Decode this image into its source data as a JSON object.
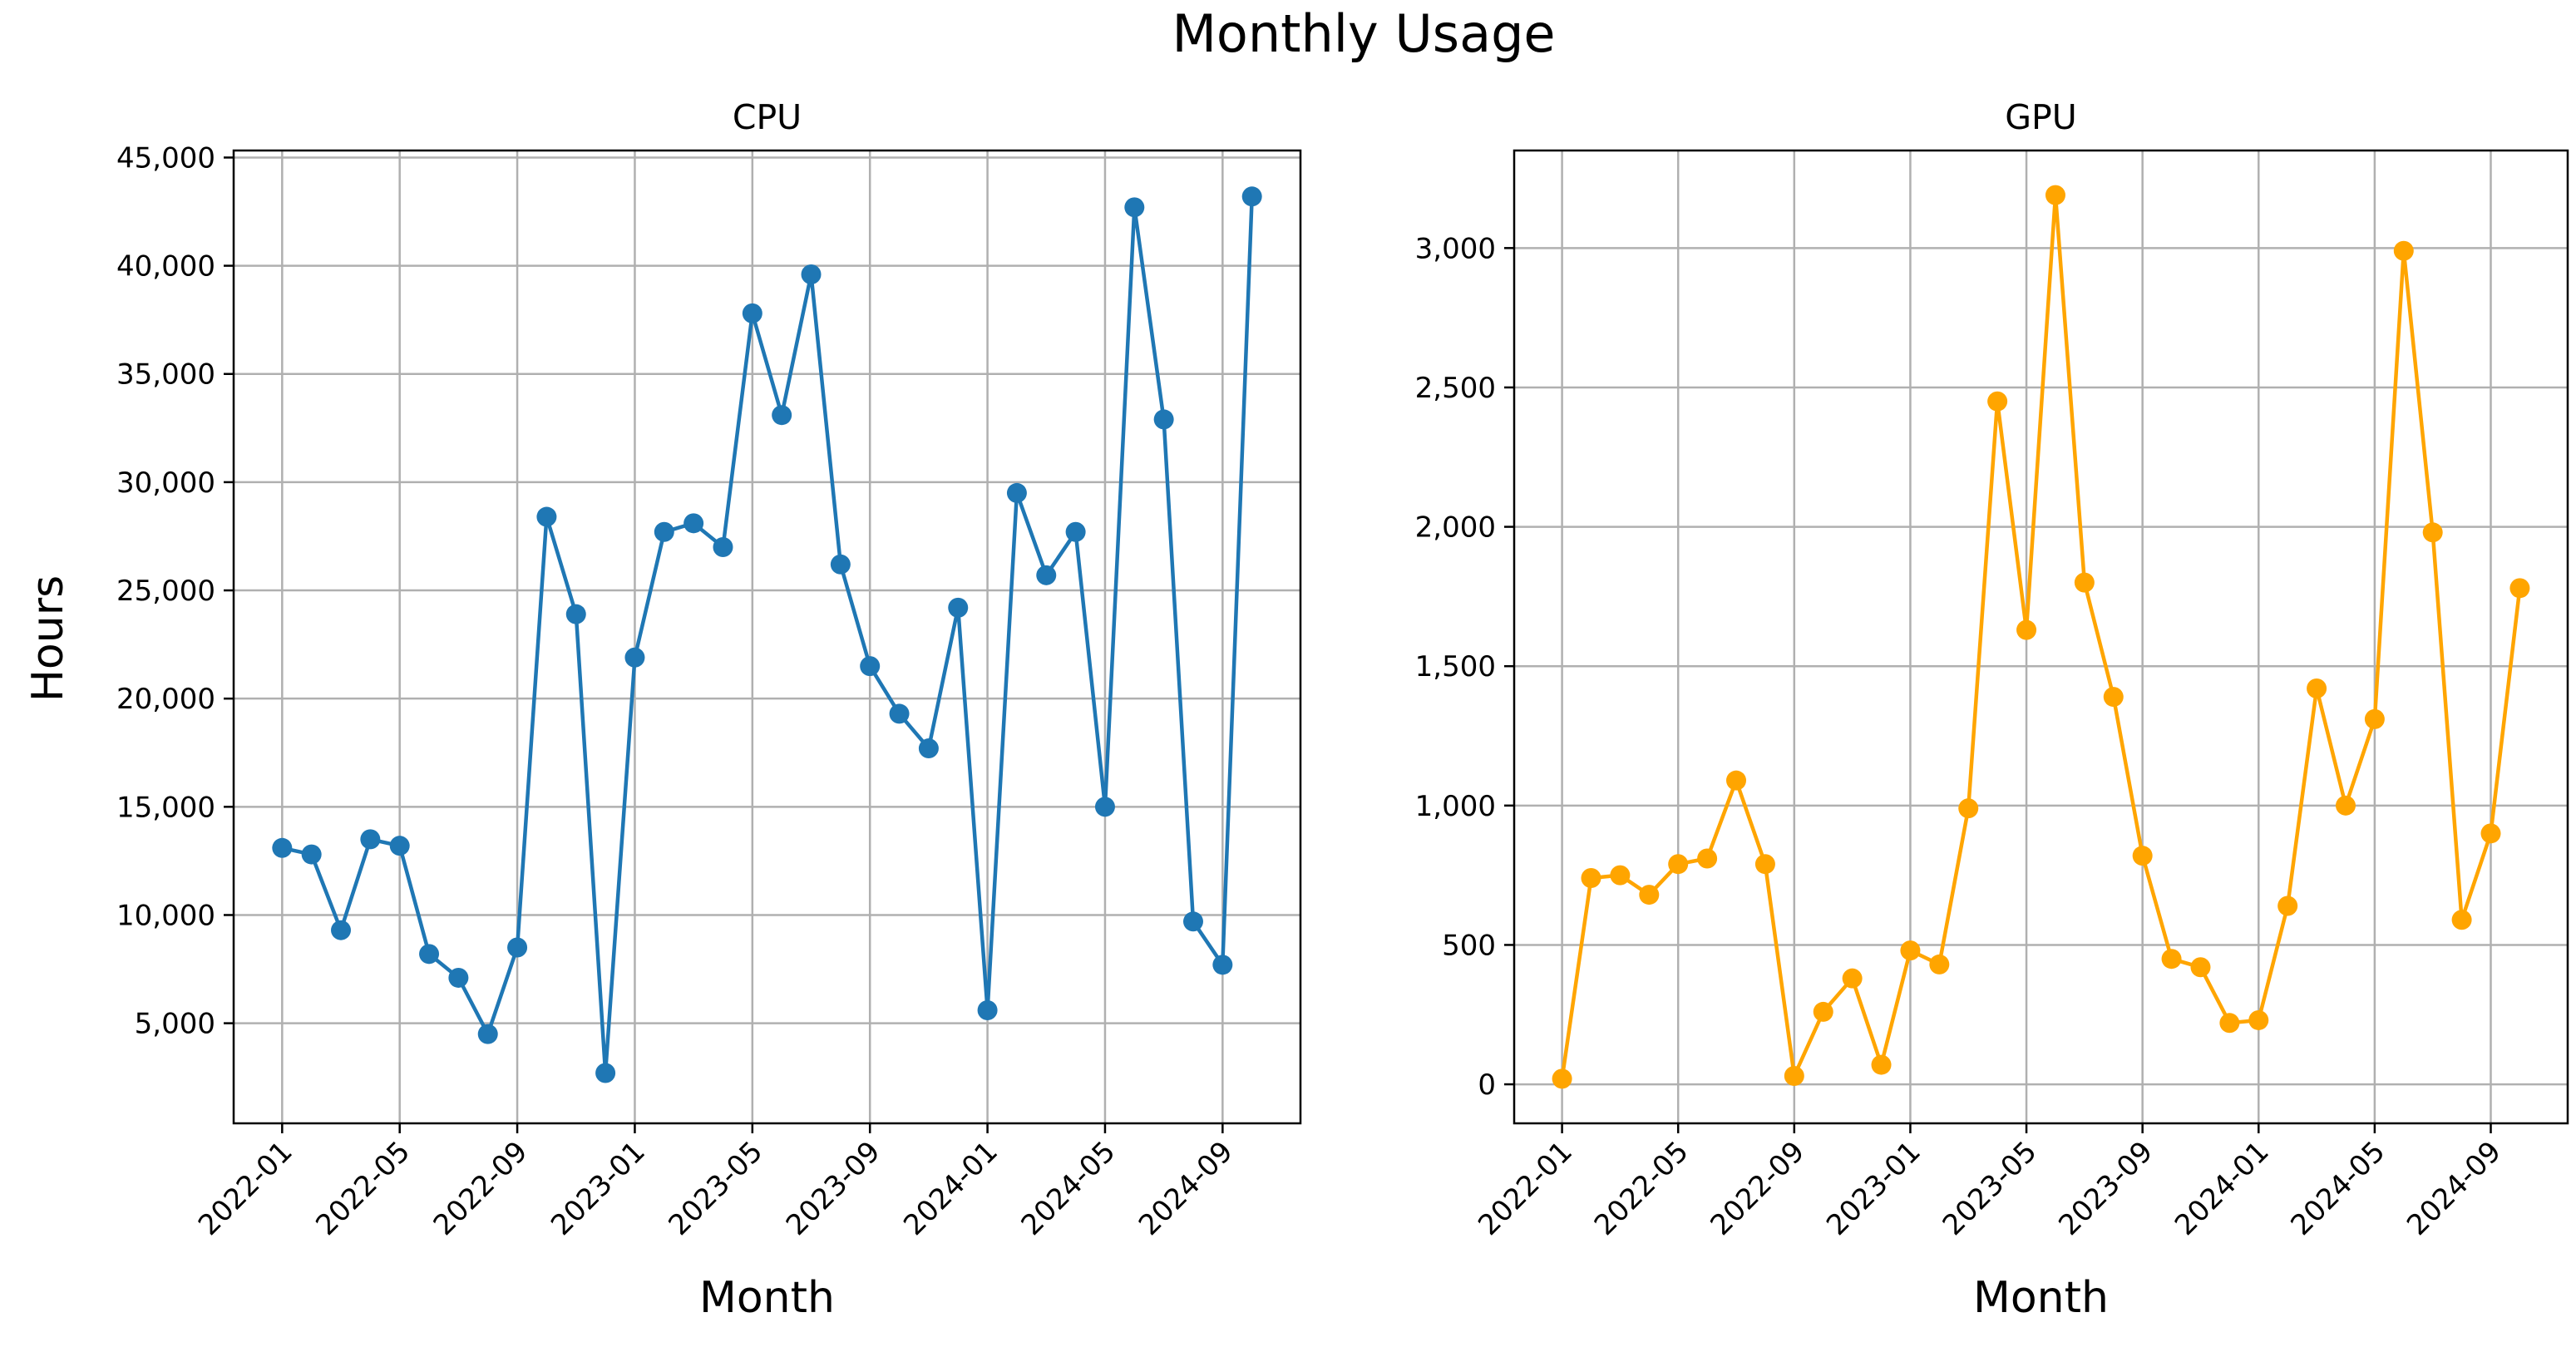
{
  "figure": {
    "title": "Monthly Usage",
    "ylabel": "Hours"
  },
  "chart_data": [
    {
      "type": "line",
      "title": "CPU",
      "xlabel": "Month",
      "ylabel": "Hours",
      "color": "#1f77b4",
      "marker": "circle",
      "grid": true,
      "x": [
        "2022-01",
        "2022-02",
        "2022-03",
        "2022-04",
        "2022-05",
        "2022-06",
        "2022-07",
        "2022-08",
        "2022-09",
        "2022-10",
        "2022-11",
        "2022-12",
        "2023-01",
        "2023-02",
        "2023-03",
        "2023-04",
        "2023-05",
        "2023-06",
        "2023-07",
        "2023-08",
        "2023-09",
        "2023-10",
        "2023-11",
        "2023-12",
        "2024-01",
        "2024-02",
        "2024-03",
        "2024-04",
        "2024-05",
        "2024-06",
        "2024-07",
        "2024-08",
        "2024-09",
        "2024-10"
      ],
      "values": [
        13100,
        12800,
        9300,
        13500,
        13200,
        8200,
        7100,
        4500,
        8500,
        28400,
        23900,
        2700,
        21900,
        27700,
        28100,
        27000,
        37800,
        33100,
        39600,
        26200,
        21500,
        19300,
        17700,
        24200,
        5600,
        29500,
        25700,
        27700,
        15000,
        42700,
        32900,
        9700,
        7700,
        43200
      ],
      "xticks": [
        "2022-01",
        "2022-05",
        "2022-09",
        "2023-01",
        "2023-05",
        "2023-09",
        "2024-01",
        "2024-05",
        "2024-09"
      ],
      "yticks": [
        5000,
        10000,
        15000,
        20000,
        25000,
        30000,
        35000,
        40000,
        45000
      ],
      "yticklabels": [
        "5,000",
        "10,000",
        "15,000",
        "20,000",
        "25,000",
        "30,000",
        "35,000",
        "40,000",
        "45,000"
      ],
      "ylim": [
        375,
        45325
      ]
    },
    {
      "type": "line",
      "title": "GPU",
      "xlabel": "Month",
      "color": "#ffa500",
      "marker": "circle",
      "grid": true,
      "x": [
        "2022-01",
        "2022-02",
        "2022-03",
        "2022-04",
        "2022-05",
        "2022-06",
        "2022-07",
        "2022-08",
        "2022-09",
        "2022-10",
        "2022-11",
        "2022-12",
        "2023-01",
        "2023-02",
        "2023-03",
        "2023-04",
        "2023-05",
        "2023-06",
        "2023-07",
        "2023-08",
        "2023-09",
        "2023-10",
        "2023-11",
        "2023-12",
        "2024-01",
        "2024-02",
        "2024-03",
        "2024-04",
        "2024-05",
        "2024-06",
        "2024-07",
        "2024-08",
        "2024-09",
        "2024-10"
      ],
      "values": [
        20,
        740,
        750,
        680,
        790,
        810,
        1090,
        790,
        30,
        260,
        380,
        70,
        480,
        430,
        990,
        2450,
        1630,
        3190,
        1800,
        1390,
        820,
        450,
        420,
        220,
        230,
        640,
        1420,
        1000,
        1310,
        2990,
        1980,
        590,
        900,
        1780
      ],
      "xticks": [
        "2022-01",
        "2022-05",
        "2022-09",
        "2023-01",
        "2023-05",
        "2023-09",
        "2024-01",
        "2024-05",
        "2024-09"
      ],
      "yticks": [
        0,
        500,
        1000,
        1500,
        2000,
        2500,
        3000
      ],
      "yticklabels": [
        "0",
        "500",
        "1,000",
        "1,500",
        "2,000",
        "2,500",
        "3,000"
      ],
      "ylim": [
        -140,
        3350
      ]
    }
  ]
}
